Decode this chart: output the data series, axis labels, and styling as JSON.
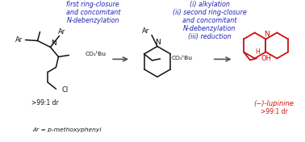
{
  "bg_color": "#ffffff",
  "blue": "#2222bb",
  "red": "#cc1111",
  "black": "#111111",
  "gray": "#555555",
  "text1": [
    "first ring-closure",
    "and concomitant",
    "N-debenzylation"
  ],
  "text2": [
    "(i) alkylation",
    "(ii) second ring-closure",
    "and concomitant",
    "N-debenzylation",
    "(iii) reduction"
  ],
  "ar_label": "Ar",
  "n_label": "N",
  "cl_label": "Cl",
  "oh_label": "OH",
  "h_label": "H",
  "co2tbu": "CO₂ᵗBu",
  "dr1": ">99:1 dr",
  "ar_def": "Ar = p-methoxyphenyl",
  "lupinine": "(−)-lupinine",
  "dr2": ">99:1 dr"
}
